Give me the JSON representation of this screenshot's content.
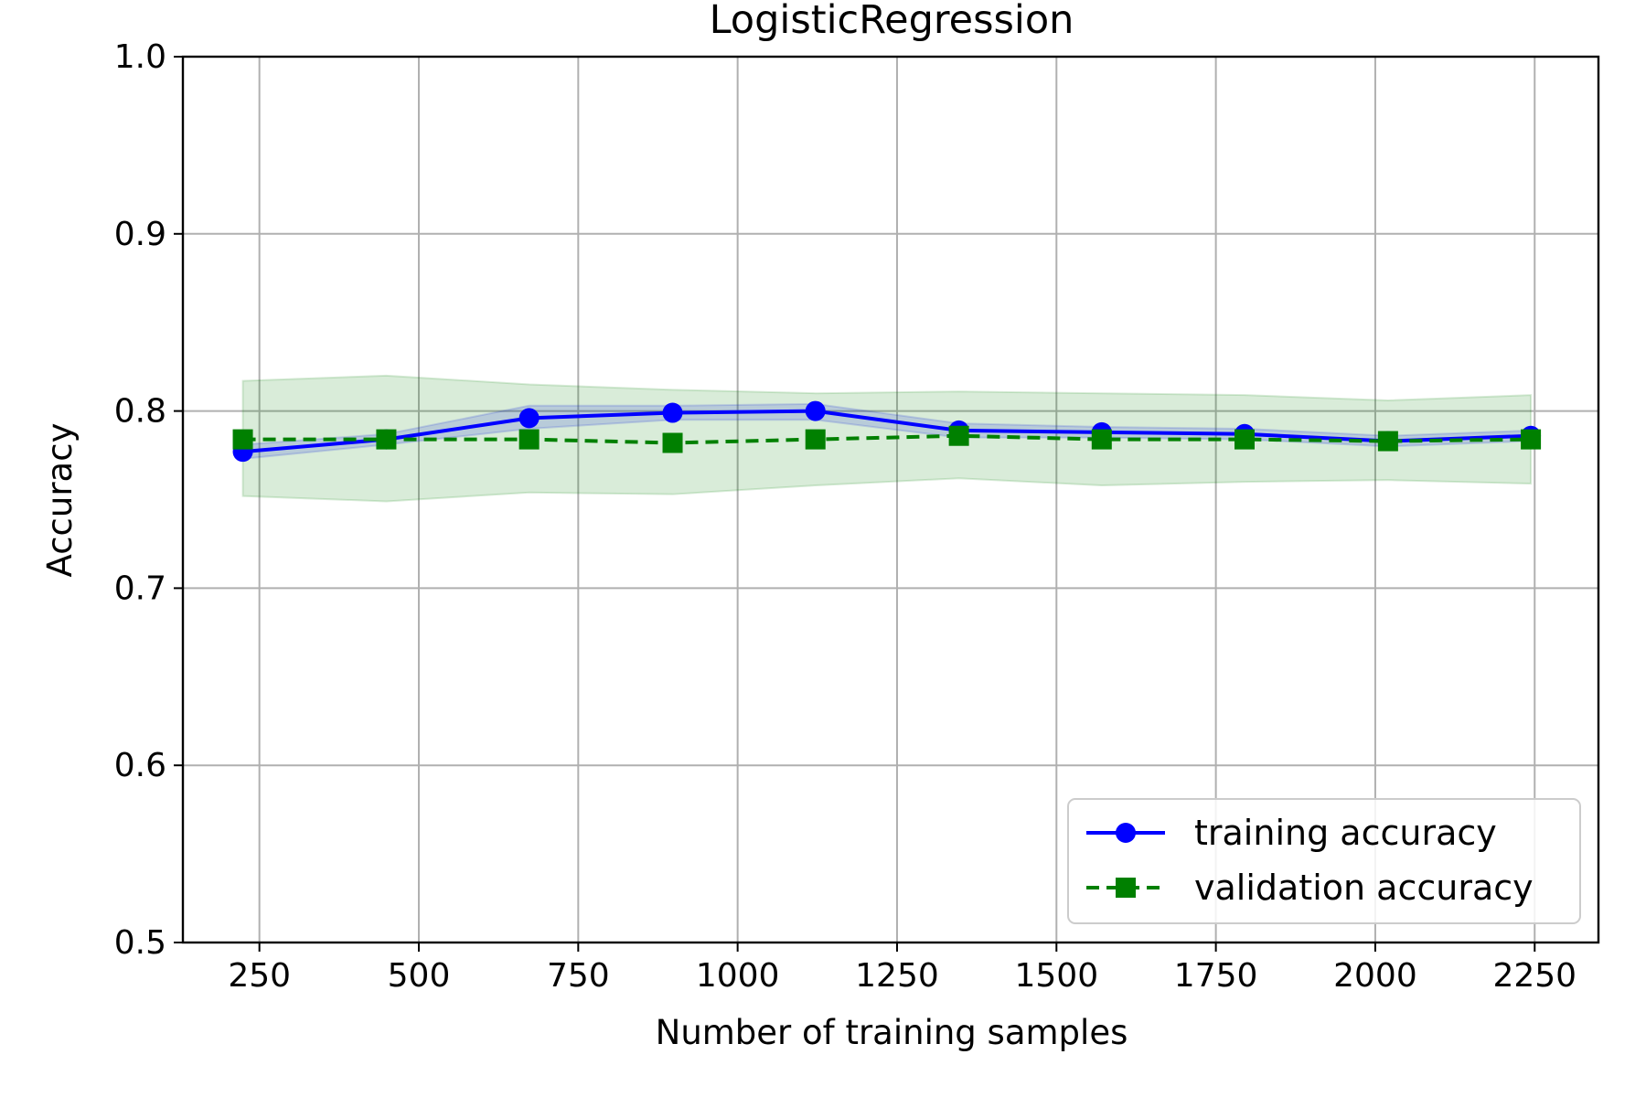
{
  "chart_data": {
    "type": "line",
    "title": "LogisticRegression",
    "xlabel": "Number of training samples",
    "ylabel": "Accuracy",
    "xlim": [
      130,
      2350
    ],
    "ylim": [
      0.5,
      1.0
    ],
    "xticks": [
      250,
      500,
      750,
      1000,
      1250,
      1500,
      1750,
      2000,
      2250
    ],
    "xtick_labels": [
      "250",
      "500",
      "750",
      "1000",
      "1250",
      "1500",
      "1750",
      "2000",
      "2250"
    ],
    "yticks": [
      0.5,
      0.6,
      0.7,
      0.8,
      0.9,
      1.0
    ],
    "ytick_labels": [
      "0.5",
      "0.6",
      "0.7",
      "0.8",
      "0.9",
      "1.0"
    ],
    "grid": true,
    "legend_position": "lower-right",
    "x": [
      224,
      449,
      673,
      898,
      1122,
      1347,
      1571,
      1795,
      2020,
      2244
    ],
    "series": [
      {
        "name": "training accuracy",
        "color": "#0000ff",
        "marker": "circle",
        "linestyle": "solid",
        "values": [
          0.777,
          0.784,
          0.796,
          0.799,
          0.8,
          0.789,
          0.788,
          0.787,
          0.783,
          0.786
        ],
        "band_lower": [
          0.773,
          0.781,
          0.79,
          0.795,
          0.795,
          0.785,
          0.785,
          0.784,
          0.78,
          0.783
        ],
        "band_upper": [
          0.781,
          0.787,
          0.803,
          0.803,
          0.804,
          0.793,
          0.791,
          0.79,
          0.786,
          0.789
        ],
        "band_color": "#0000ff"
      },
      {
        "name": "validation accuracy",
        "color": "#008000",
        "marker": "square",
        "linestyle": "dashed",
        "values": [
          0.784,
          0.784,
          0.784,
          0.782,
          0.784,
          0.786,
          0.784,
          0.784,
          0.783,
          0.784
        ],
        "band_lower": [
          0.752,
          0.749,
          0.754,
          0.753,
          0.758,
          0.762,
          0.758,
          0.76,
          0.761,
          0.759
        ],
        "band_upper": [
          0.817,
          0.82,
          0.815,
          0.812,
          0.81,
          0.811,
          0.81,
          0.809,
          0.806,
          0.809
        ],
        "band_color": "#008000"
      }
    ]
  }
}
